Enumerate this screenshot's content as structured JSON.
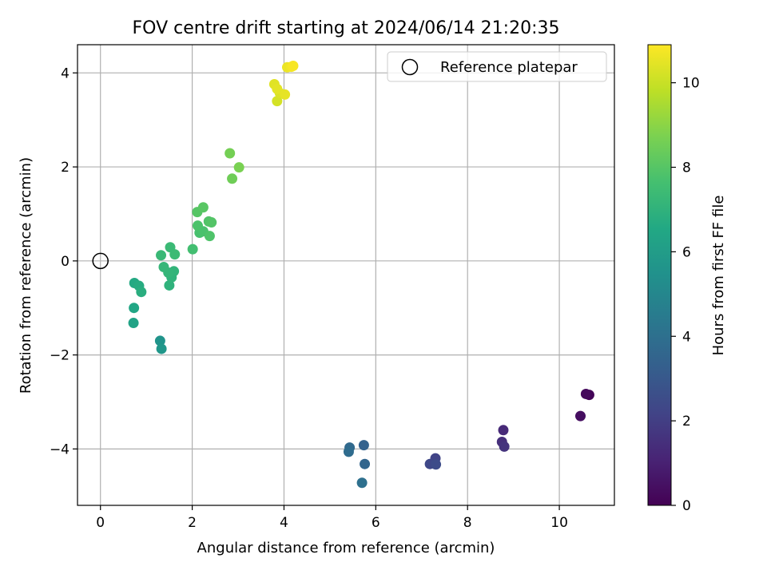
{
  "chart_data": {
    "type": "scatter",
    "title": "FOV centre drift starting at 2024/06/14 21:20:35",
    "xlabel": "Angular distance from reference (arcmin)",
    "ylabel": "Rotation from reference (arcmin)",
    "xlim": [
      -0.5,
      11.2
    ],
    "ylim": [
      -5.2,
      4.6
    ],
    "xticks": [
      0,
      2,
      4,
      6,
      8,
      10
    ],
    "yticks": [
      -4,
      -2,
      0,
      2,
      4
    ],
    "grid": true,
    "legend": {
      "position": "top-right",
      "entries": [
        "Reference platepar"
      ]
    },
    "reference_point": {
      "x": 0,
      "y": 0,
      "label": "Reference platepar"
    },
    "colorbar": {
      "label": "Hours from first FF file",
      "range": [
        0,
        10.9
      ],
      "ticks": [
        0,
        2,
        4,
        6,
        8,
        10
      ],
      "colormap": "viridis"
    },
    "points": [
      {
        "x": 10.65,
        "y": -2.85,
        "c": 0.1
      },
      {
        "x": 10.58,
        "y": -2.83,
        "c": 0.25
      },
      {
        "x": 10.46,
        "y": -3.3,
        "c": 0.4
      },
      {
        "x": 8.78,
        "y": -3.6,
        "c": 1.3
      },
      {
        "x": 8.75,
        "y": -3.85,
        "c": 1.45
      },
      {
        "x": 8.8,
        "y": -3.95,
        "c": 1.6
      },
      {
        "x": 7.3,
        "y": -4.2,
        "c": 2.2
      },
      {
        "x": 7.18,
        "y": -4.32,
        "c": 2.35
      },
      {
        "x": 7.31,
        "y": -4.33,
        "c": 2.5
      },
      {
        "x": 5.74,
        "y": -3.92,
        "c": 3.4
      },
      {
        "x": 5.76,
        "y": -4.32,
        "c": 3.55
      },
      {
        "x": 5.43,
        "y": -3.97,
        "c": 3.7
      },
      {
        "x": 5.41,
        "y": -4.06,
        "c": 3.85
      },
      {
        "x": 5.7,
        "y": -4.72,
        "c": 4.0
      },
      {
        "x": 1.3,
        "y": -1.7,
        "c": 5.6
      },
      {
        "x": 1.33,
        "y": -1.87,
        "c": 5.75
      },
      {
        "x": 0.72,
        "y": -1.32,
        "c": 6.3
      },
      {
        "x": 0.73,
        "y": -1.0,
        "c": 6.45
      },
      {
        "x": 0.74,
        "y": -0.47,
        "c": 6.6
      },
      {
        "x": 0.84,
        "y": -0.53,
        "c": 6.7
      },
      {
        "x": 0.89,
        "y": -0.66,
        "c": 6.8
      },
      {
        "x": 1.5,
        "y": -0.52,
        "c": 7.0
      },
      {
        "x": 1.55,
        "y": -0.35,
        "c": 7.05
      },
      {
        "x": 1.6,
        "y": -0.22,
        "c": 7.1
      },
      {
        "x": 1.48,
        "y": -0.25,
        "c": 7.15
      },
      {
        "x": 1.38,
        "y": -0.13,
        "c": 7.2
      },
      {
        "x": 1.32,
        "y": 0.12,
        "c": 7.3
      },
      {
        "x": 1.52,
        "y": 0.29,
        "c": 7.35
      },
      {
        "x": 1.62,
        "y": 0.14,
        "c": 7.4
      },
      {
        "x": 2.01,
        "y": 0.25,
        "c": 7.6
      },
      {
        "x": 2.16,
        "y": 0.6,
        "c": 7.7
      },
      {
        "x": 2.24,
        "y": 0.63,
        "c": 7.75
      },
      {
        "x": 2.12,
        "y": 0.75,
        "c": 7.8
      },
      {
        "x": 2.38,
        "y": 0.53,
        "c": 7.85
      },
      {
        "x": 2.36,
        "y": 0.84,
        "c": 7.9
      },
      {
        "x": 2.42,
        "y": 0.82,
        "c": 7.95
      },
      {
        "x": 2.11,
        "y": 1.04,
        "c": 8.0
      },
      {
        "x": 2.24,
        "y": 1.14,
        "c": 8.05
      },
      {
        "x": 2.87,
        "y": 1.75,
        "c": 8.5
      },
      {
        "x": 2.82,
        "y": 2.29,
        "c": 8.6
      },
      {
        "x": 3.02,
        "y": 1.99,
        "c": 8.7
      },
      {
        "x": 3.85,
        "y": 3.4,
        "c": 10.2
      },
      {
        "x": 3.91,
        "y": 3.57,
        "c": 10.3
      },
      {
        "x": 3.79,
        "y": 3.76,
        "c": 10.4
      },
      {
        "x": 3.85,
        "y": 3.66,
        "c": 10.45
      },
      {
        "x": 4.02,
        "y": 3.54,
        "c": 10.5
      },
      {
        "x": 4.07,
        "y": 4.12,
        "c": 10.6
      },
      {
        "x": 4.16,
        "y": 4.13,
        "c": 10.7
      },
      {
        "x": 4.2,
        "y": 4.15,
        "c": 10.8
      }
    ]
  }
}
